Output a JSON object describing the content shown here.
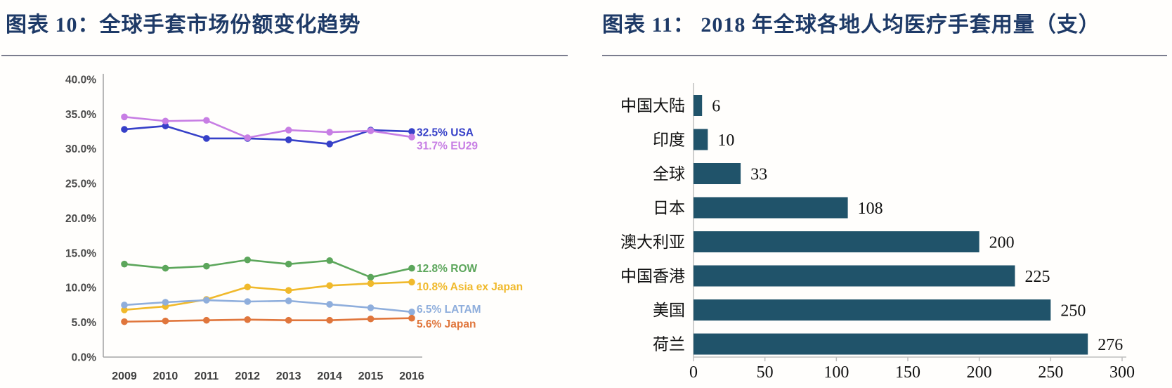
{
  "header": {
    "left_title": "图表 10：全球手套市场份额变化趋势",
    "right_title": "图表 11： 2018 年全球各地人均医疗手套用量（支）",
    "title_color": "#1E3A67"
  },
  "chart_data": [
    {
      "id": "global-glove-market-share",
      "type": "line",
      "title": "全球手套市场份额变化趋势",
      "x_labels": [
        "2009",
        "2010",
        "2011",
        "2012",
        "2013",
        "2014",
        "2015",
        "2016"
      ],
      "y_tick_labels": [
        "0.0%",
        "5.0%",
        "10.0%",
        "15.0%",
        "20.0%",
        "25.0%",
        "30.0%",
        "35.0%",
        "40.0%"
      ],
      "ylim": [
        0,
        40
      ],
      "ytick_step": 5,
      "grid": false,
      "legend_position": "line-end-labels",
      "axis_color": "#a6a6a6",
      "ylabel_color": "#4a4a4a",
      "xlabel_color": "#3f3f3f",
      "series": [
        {
          "name": "USA",
          "color": "#3640c8",
          "end_label": "32.5% USA",
          "values": [
            32.8,
            33.3,
            31.5,
            31.5,
            31.3,
            30.7,
            32.7,
            32.5
          ]
        },
        {
          "name": "EU29",
          "color": "#c77ee4",
          "end_label": "31.7% EU29",
          "values": [
            34.6,
            34.0,
            34.1,
            31.6,
            32.7,
            32.4,
            32.6,
            31.7
          ]
        },
        {
          "name": "ROW",
          "color": "#5ca65b",
          "end_label": "12.8% ROW",
          "values": [
            13.4,
            12.8,
            13.1,
            14.0,
            13.4,
            13.9,
            11.5,
            12.8
          ]
        },
        {
          "name": "Asia ex Japan",
          "color": "#f0b92b",
          "end_label": "10.8% Asia ex Japan",
          "values": [
            6.8,
            7.3,
            8.3,
            10.1,
            9.6,
            10.3,
            10.6,
            10.8
          ]
        },
        {
          "name": "LATAM",
          "color": "#8fAEdc",
          "end_label": "6.5% LATAM",
          "values": [
            7.5,
            7.9,
            8.2,
            8.0,
            8.1,
            7.6,
            7.1,
            6.5
          ]
        },
        {
          "name": "Japan",
          "color": "#e0763c",
          "end_label": "5.6% Japan",
          "values": [
            5.1,
            5.2,
            5.3,
            5.4,
            5.3,
            5.3,
            5.5,
            5.6
          ]
        }
      ]
    },
    {
      "id": "per-capita-medical-glove-usage-2018",
      "type": "bar",
      "orientation": "horizontal",
      "title": "2018 年全球各地人均医疗手套用量（支）",
      "categories": [
        "中国大陆",
        "印度",
        "全球",
        "日本",
        "澳大利亚",
        "中国香港",
        "美国",
        "荷兰"
      ],
      "values": [
        6,
        10,
        33,
        108,
        200,
        225,
        250,
        276
      ],
      "value_labels": [
        "6",
        "10",
        "33",
        "108",
        "200",
        "225",
        "250",
        "276"
      ],
      "x_tick_labels": [
        "0",
        "50",
        "100",
        "150",
        "200",
        "250",
        "300"
      ],
      "x_ticks": [
        0,
        50,
        100,
        150,
        200,
        250,
        300
      ],
      "xlim": [
        0,
        300
      ],
      "bar_color": "#20536a",
      "axis_color": "#bfbfbf",
      "label_color": "#111111",
      "grid": false
    }
  ]
}
